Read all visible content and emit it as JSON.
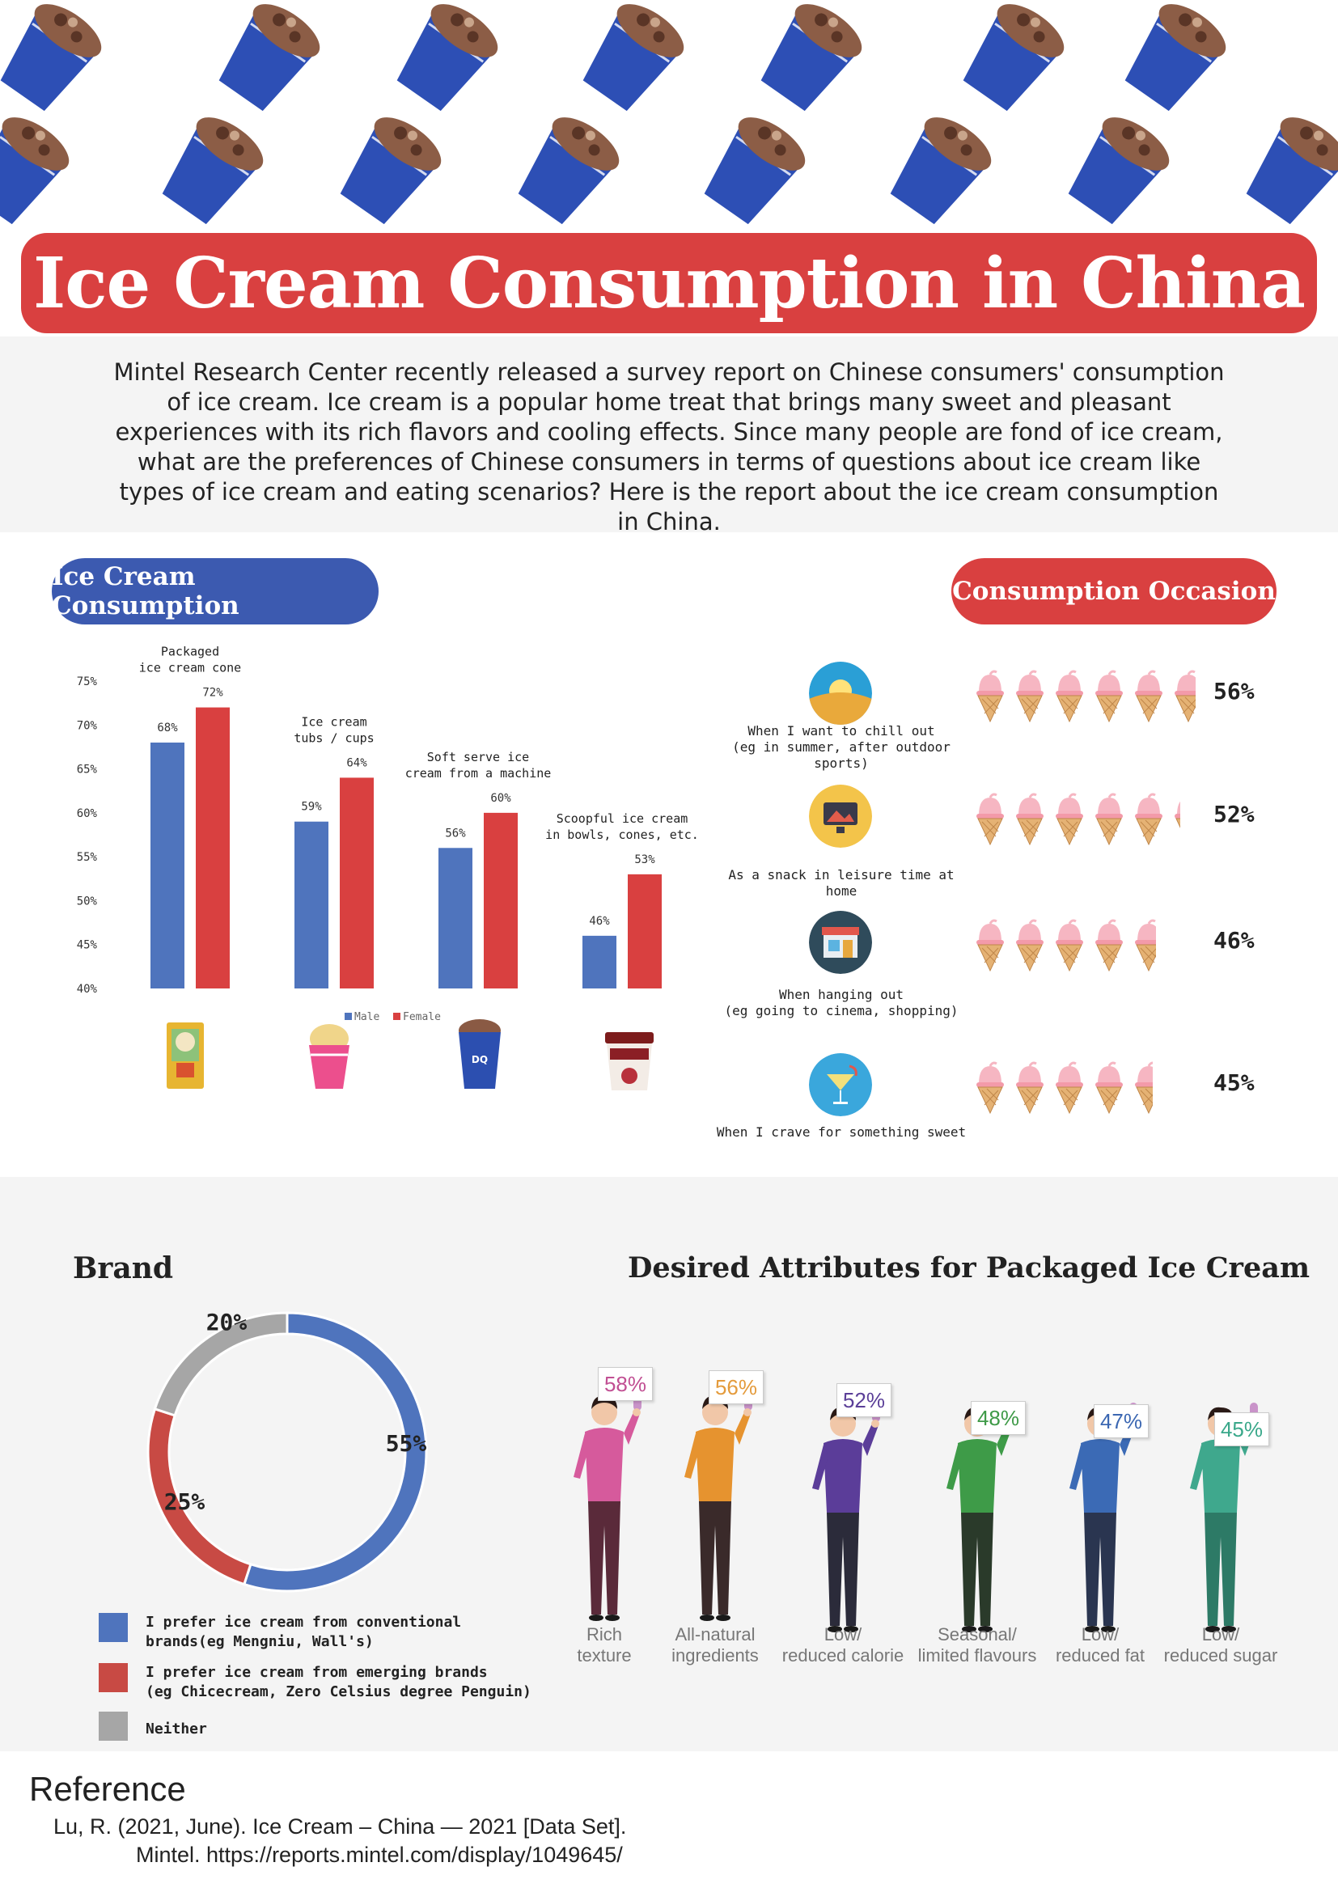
{
  "title": "Ice Cream Consumption in China",
  "intro": "Mintel Research Center recently released a survey report on Chinese consumers' consumption of ice cream. Ice cream is a popular home treat that brings many sweet and pleasant experiences with its rich flavors and cooling effects. Since many people are fond of ice cream, what are the preferences of Chinese consumers in terms of questions about ice cream like types of ice cream and eating scenarios? Here is the report about the ice cream consumption in China.",
  "sections": {
    "consumption": "Ice Cream Consumption",
    "occasion": "Consumption Occasion",
    "brand": "Brand",
    "attributes": "Desired Attributes for Packaged Ice Cream"
  },
  "colors": {
    "male": "#4f74bd",
    "female": "#d94040",
    "neither": "#a6a6a6",
    "accent_red": "#d94040",
    "accent_blue": "#3c5ab0"
  },
  "chart_data": [
    {
      "type": "bar",
      "title": "Ice Cream Consumption",
      "categories": [
        [
          "Packaged",
          "ice cream cone"
        ],
        [
          "Ice cream",
          "tubs / cups"
        ],
        [
          "Soft serve ice",
          "cream from a machine"
        ],
        [
          "Scoopful ice cream",
          "in bowls, cones, etc."
        ]
      ],
      "series": [
        {
          "name": "Male",
          "values": [
            68,
            59,
            56,
            46
          ],
          "labels": [
            "68%",
            "59%",
            "56%",
            "46%"
          ]
        },
        {
          "name": "Female",
          "values": [
            72,
            64,
            60,
            53
          ],
          "labels": [
            "72%",
            "64%",
            "60%",
            "53%"
          ]
        }
      ],
      "ylim": [
        40,
        75
      ],
      "yticks": [
        "40%",
        "45%",
        "50%",
        "55%",
        "60%",
        "65%",
        "70%",
        "75%"
      ],
      "ytick_values": [
        40,
        45,
        50,
        55,
        60,
        65,
        70,
        75
      ],
      "legend": "bottom"
    },
    {
      "type": "bar",
      "title": "Consumption Occasion",
      "categories": [
        [
          "When I want to chill out",
          "(eg in summer, after outdoor sports)"
        ],
        [
          "As a snack in leisure time at home"
        ],
        [
          "When hanging out",
          "(eg going to cinema, shopping)"
        ],
        [
          "When I crave for something sweet"
        ]
      ],
      "values": [
        56,
        52,
        46,
        45
      ],
      "labels": [
        "56%",
        "52%",
        "46%",
        "45%"
      ],
      "icons": [
        "sun-dunes-icon",
        "monitor-icon",
        "shop-icon",
        "cocktail-icon"
      ]
    },
    {
      "type": "pie",
      "title": "Brand",
      "slices": [
        {
          "label": "I prefer ice cream from conventional brands(eg Mengniu, Wall's)",
          "lines": [
            "I prefer ice cream from conventional",
            "brands(eg Mengniu, Wall's)"
          ],
          "value": 55,
          "text": "55%",
          "color": "#4f74bd"
        },
        {
          "label": "I prefer ice cream from emerging brands (eg Chicecream, Zero Celsius degree Penguin)",
          "lines": [
            "I prefer ice cream from emerging brands",
            "(eg Chicecream, Zero Celsius degree Penguin)"
          ],
          "value": 25,
          "text": "25%",
          "color": "#c84a44"
        },
        {
          "label": "Neither",
          "lines": [
            "Neither"
          ],
          "value": 20,
          "text": "20%",
          "color": "#a6a6a6"
        }
      ]
    },
    {
      "type": "bar",
      "title": "Desired Attributes for Packaged Ice Cream",
      "categories": [
        [
          "Rich",
          "texture"
        ],
        [
          "All-natural",
          "ingredients"
        ],
        [
          "Low/",
          "reduced calorie"
        ],
        [
          "Seasonal/",
          "limited flavours"
        ],
        [
          "Low/",
          "reduced fat"
        ],
        [
          "Low/",
          "reduced sugar"
        ]
      ],
      "values": [
        58,
        56,
        52,
        48,
        47,
        45
      ],
      "labels": [
        "58%",
        "56%",
        "52%",
        "48%",
        "47%",
        "45%"
      ],
      "label_colors": [
        "#c14f93",
        "#e49b3c",
        "#5b3f98",
        "#3f9a48",
        "#3b67b2",
        "#3aa88a"
      ]
    }
  ],
  "reference": {
    "title": "Reference",
    "line1": "Lu, R. (2021, June). Ice Cream – China — 2021 [Data Set].",
    "line2": "Mintel. https://reports.mintel.com/display/1049645/"
  }
}
